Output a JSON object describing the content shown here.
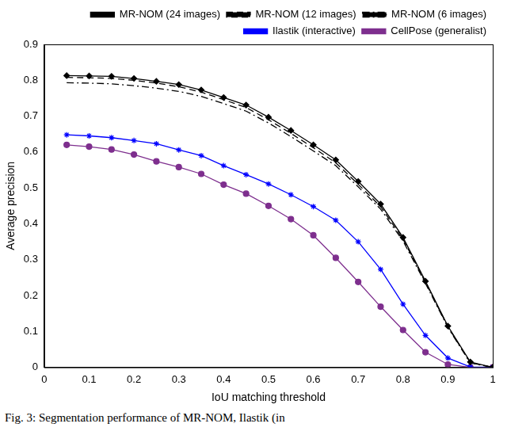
{
  "chart_data": {
    "type": "line",
    "x_label": "IoU matching threshold",
    "y_label": "Average precision",
    "caption": "Fig. 3: Segmentation performance of MR-NOM, Ilastik (in",
    "x": [
      0.05,
      0.1,
      0.15,
      0.2,
      0.25,
      0.3,
      0.35,
      0.4,
      0.45,
      0.5,
      0.55,
      0.6,
      0.65,
      0.7,
      0.75,
      0.8,
      0.85,
      0.9,
      0.95,
      1
    ],
    "series": [
      {
        "name": "MR-NOM (24 images)",
        "color": "#000000",
        "marker": "diamond",
        "line_style": "solid",
        "values": [
          0.813,
          0.812,
          0.811,
          0.805,
          0.797,
          0.788,
          0.773,
          0.752,
          0.731,
          0.697,
          0.66,
          0.62,
          0.578,
          0.518,
          0.455,
          0.362,
          0.24,
          0.115,
          0.015,
          0.0
        ]
      },
      {
        "name": "MR-NOM (12 images)",
        "color": "#000000",
        "marker": "none",
        "line_style": "dashed",
        "values": [
          0.808,
          0.807,
          0.805,
          0.8,
          0.792,
          0.782,
          0.767,
          0.746,
          0.724,
          0.69,
          0.652,
          0.612,
          0.57,
          0.51,
          0.448,
          0.357,
          0.237,
          0.113,
          0.013,
          0.0
        ]
      },
      {
        "name": "MR-NOM (6 images)",
        "color": "#000000",
        "marker": "none",
        "line_style": "dashdot",
        "values": [
          0.793,
          0.792,
          0.79,
          0.785,
          0.778,
          0.769,
          0.755,
          0.735,
          0.714,
          0.681,
          0.643,
          0.603,
          0.562,
          0.503,
          0.441,
          0.352,
          0.234,
          0.111,
          0.012,
          0.0
        ]
      },
      {
        "name": "Ilastik (interactive)",
        "color": "#0000ff",
        "marker": "star",
        "line_style": "solid",
        "values": [
          0.648,
          0.645,
          0.64,
          0.632,
          0.623,
          0.606,
          0.59,
          0.562,
          0.537,
          0.511,
          0.481,
          0.448,
          0.41,
          0.35,
          0.273,
          0.176,
          0.089,
          0.026,
          0.001,
          0.0
        ]
      },
      {
        "name": "CellPose (generalist)",
        "color": "#7e2f8e",
        "marker": "circle",
        "line_style": "solid",
        "values": [
          0.62,
          0.615,
          0.607,
          0.593,
          0.574,
          0.558,
          0.539,
          0.509,
          0.484,
          0.45,
          0.413,
          0.368,
          0.305,
          0.238,
          0.169,
          0.104,
          0.042,
          0.008,
          0.0,
          0.0
        ]
      }
    ],
    "xlim": [
      0,
      1
    ],
    "xticks": [
      0,
      0.1,
      0.2,
      0.3,
      0.4,
      0.5,
      0.6,
      0.7,
      0.8,
      0.9,
      1
    ],
    "ylim": [
      0,
      0.9
    ],
    "yticks": [
      0,
      0.1,
      0.2,
      0.3,
      0.4,
      0.5,
      0.6,
      0.7,
      0.8,
      0.9
    ],
    "grid": false,
    "legend": "top-right"
  }
}
